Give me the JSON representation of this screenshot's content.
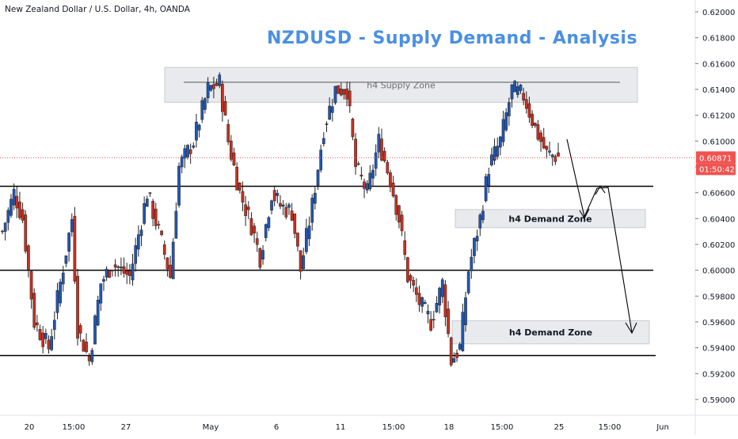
{
  "instrument_label": "New Zealand Dollar / U.S. Dollar, 4h, OANDA",
  "chart_data": {
    "type": "candlestick",
    "title": "NZDUSD - Supply Demand - Analysis",
    "ylim": [
      0.588,
      0.621
    ],
    "y_ticks": [
      "0.62000",
      "0.61800",
      "0.61600",
      "0.61400",
      "0.61200",
      "0.61000",
      "0.60800",
      "0.60600",
      "0.60400",
      "0.60200",
      "0.60000",
      "0.59800",
      "0.59600",
      "0.59400",
      "0.59200",
      "0.59000"
    ],
    "x_ticks": [
      "20",
      "15:00",
      "27",
      "May",
      "6",
      "11",
      "15:00",
      "18",
      "15:00",
      "25",
      "15:00",
      "Jun"
    ],
    "last_price": "0.60871",
    "countdown": "01:50:42",
    "horizontal_levels": [
      0.6065,
      0.6,
      0.5934,
      0.61455
    ],
    "zones": [
      {
        "label": "h4 Supply Zone",
        "low": 0.613,
        "high": 0.6157
      },
      {
        "label": "h4 Demand Zone",
        "low": 0.6033,
        "high": 0.6047
      },
      {
        "label": "h4 Demand Zone",
        "low": 0.5943,
        "high": 0.5961
      }
    ],
    "candles": {
      "anchors": [
        [
          0,
          0.603
        ],
        [
          4,
          0.606
        ],
        [
          7,
          0.604
        ],
        [
          11,
          0.596
        ],
        [
          16,
          0.594
        ],
        [
          24,
          0.604
        ],
        [
          26,
          0.5955
        ],
        [
          30,
          0.593
        ],
        [
          34,
          0.599
        ],
        [
          38,
          0.6005
        ],
        [
          44,
          0.5995
        ],
        [
          50,
          0.606
        ],
        [
          54,
          0.603
        ],
        [
          58,
          0.5995
        ],
        [
          61,
          0.608
        ],
        [
          66,
          0.61
        ],
        [
          71,
          0.614
        ],
        [
          75,
          0.6145
        ],
        [
          78,
          0.61
        ],
        [
          82,
          0.606
        ],
        [
          86,
          0.6035
        ],
        [
          89,
          0.601
        ],
        [
          93,
          0.606
        ],
        [
          96,
          0.605
        ],
        [
          100,
          0.6045
        ],
        [
          103,
          0.6
        ],
        [
          107,
          0.605
        ],
        [
          111,
          0.611
        ],
        [
          115,
          0.614
        ],
        [
          119,
          0.614
        ],
        [
          122,
          0.608
        ],
        [
          126,
          0.606
        ],
        [
          130,
          0.61
        ],
        [
          134,
          0.607
        ],
        [
          137,
          0.604
        ],
        [
          140,
          0.5995
        ],
        [
          144,
          0.5975
        ],
        [
          148,
          0.596
        ],
        [
          152,
          0.599
        ],
        [
          155,
          0.593
        ],
        [
          158,
          0.594
        ],
        [
          161,
          0.6
        ],
        [
          165,
          0.604
        ],
        [
          168,
          0.608
        ],
        [
          172,
          0.61
        ],
        [
          176,
          0.614
        ],
        [
          180,
          0.6135
        ],
        [
          184,
          0.611
        ],
        [
          188,
          0.609
        ],
        [
          192,
          0.6088
        ]
      ]
    }
  }
}
